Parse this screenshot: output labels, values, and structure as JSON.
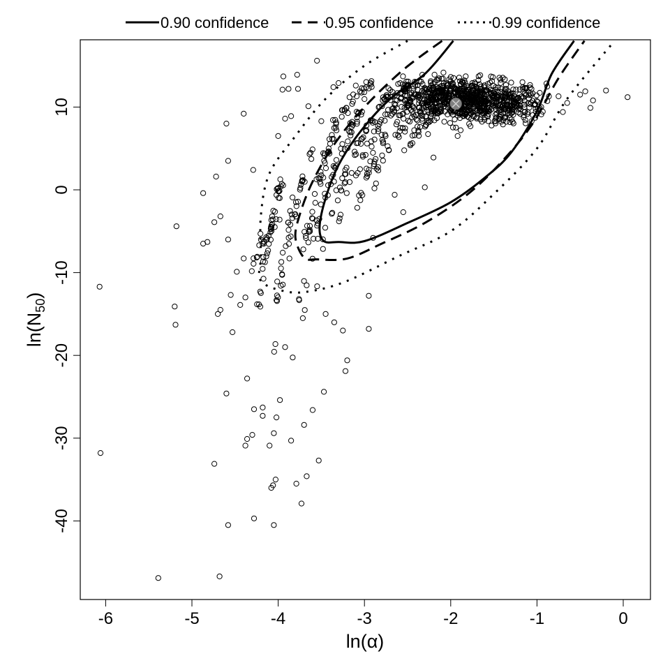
{
  "chart_data": {
    "type": "scatter",
    "title": "",
    "xlabel": "ln(α)",
    "ylabel": "ln(N50)",
    "ylabel_main": "ln(N",
    "ylabel_sub": "50",
    "ylabel_close": ")",
    "xlim": [
      -6.3,
      0.3
    ],
    "ylim": [
      -49,
      18
    ],
    "x_ticks": [
      -6,
      -5,
      -4,
      -3,
      -2,
      -1,
      0
    ],
    "x_tick_labels": [
      "-6",
      "-5",
      "-4",
      "-3",
      "-2",
      "-1",
      "0"
    ],
    "y_ticks": [
      10,
      0,
      -10,
      -20,
      -30,
      -40
    ],
    "y_tick_labels": [
      "10",
      "0",
      "-10",
      "-20",
      "-30",
      "-40"
    ],
    "grid": false,
    "legend_position": "top (outside plot)",
    "legend": [
      {
        "label": "0.90 confidence",
        "style": "solid"
      },
      {
        "label": "0.95 confidence",
        "style": "dashed"
      },
      {
        "label": "0.99 confidence",
        "style": "dotted"
      }
    ],
    "point_estimate": {
      "x": -1.94,
      "y": 10.4,
      "marker": "circled-x",
      "color": "#808080"
    },
    "contours": [
      {
        "name": "0.90 confidence",
        "style": "solid",
        "points": [
          [
            -1.97,
            18
          ],
          [
            -2.3,
            14
          ],
          [
            -2.7,
            11
          ],
          [
            -3.05,
            7
          ],
          [
            -3.3,
            3
          ],
          [
            -3.45,
            -1
          ],
          [
            -3.52,
            -4.5
          ],
          [
            -3.47,
            -6.2
          ],
          [
            -3.3,
            -6.3
          ],
          [
            -3.0,
            -6.2
          ],
          [
            -2.5,
            -4
          ],
          [
            -2.0,
            -1.5
          ],
          [
            -1.6,
            1.5
          ],
          [
            -1.3,
            4.5
          ],
          [
            -1.0,
            9.5
          ],
          [
            -0.83,
            14
          ],
          [
            -0.57,
            18
          ]
        ]
      },
      {
        "name": "0.95 confidence",
        "style": "dashed",
        "points": [
          [
            -2.1,
            18
          ],
          [
            -2.55,
            14.5
          ],
          [
            -3.0,
            10
          ],
          [
            -3.35,
            5.5
          ],
          [
            -3.6,
            1
          ],
          [
            -3.75,
            -3
          ],
          [
            -3.8,
            -5.8
          ],
          [
            -3.7,
            -8.2
          ],
          [
            -3.55,
            -8.4
          ],
          [
            -3.2,
            -8.3
          ],
          [
            -2.8,
            -6.5
          ],
          [
            -2.3,
            -4
          ],
          [
            -1.8,
            -0.5
          ],
          [
            -1.4,
            3.5
          ],
          [
            -1.05,
            8
          ],
          [
            -0.75,
            13.5
          ],
          [
            -0.45,
            18
          ]
        ]
      },
      {
        "name": "0.99 confidence",
        "style": "dotted",
        "points": [
          [
            -2.5,
            18
          ],
          [
            -3.0,
            15
          ],
          [
            -3.45,
            11
          ],
          [
            -3.8,
            6.5
          ],
          [
            -4.1,
            2
          ],
          [
            -4.2,
            -3
          ],
          [
            -4.2,
            -8
          ],
          [
            -4.2,
            -11
          ],
          [
            -3.9,
            -12.3
          ],
          [
            -3.6,
            -12.2
          ],
          [
            -3.2,
            -11
          ],
          [
            -2.6,
            -8
          ],
          [
            -2.0,
            -5
          ],
          [
            -1.5,
            -0.5
          ],
          [
            -1.0,
            5
          ],
          [
            -0.65,
            11
          ],
          [
            -0.1,
            18
          ]
        ]
      }
    ],
    "scatter_outliers": [
      [
        -6.07,
        -11.7
      ],
      [
        -6.06,
        -31.8
      ],
      [
        -5.39,
        -46.9
      ],
      [
        -4.68,
        -46.7
      ],
      [
        -5.18,
        -4.4
      ],
      [
        -5.2,
        -14.1
      ],
      [
        -5.19,
        -16.3
      ],
      [
        -4.87,
        -0.4
      ],
      [
        -4.82,
        -6.3
      ],
      [
        -4.87,
        -6.5
      ],
      [
        -4.74,
        -3.9
      ],
      [
        -4.72,
        1.6
      ],
      [
        -4.7,
        -15
      ],
      [
        -4.67,
        -3.2
      ],
      [
        -4.67,
        -14.5
      ],
      [
        -4.6,
        8
      ],
      [
        -4.58,
        3.5
      ],
      [
        -4.58,
        -6
      ],
      [
        -4.6,
        -24.6
      ],
      [
        -4.58,
        -40.5
      ],
      [
        -4.55,
        -12.7
      ],
      [
        -4.53,
        -17.2
      ],
      [
        -4.74,
        -33.1
      ],
      [
        -4.4,
        9.2
      ],
      [
        -4.29,
        2.4
      ],
      [
        -4.48,
        -9.9
      ],
      [
        -4.44,
        -13.9
      ],
      [
        -4.4,
        -8.3
      ],
      [
        -4.38,
        -13
      ],
      [
        -4.36,
        -30.1
      ],
      [
        -4.38,
        -30.9
      ],
      [
        -4.36,
        -22.8
      ],
      [
        -4.3,
        -29.6
      ],
      [
        -4.28,
        -26.5
      ],
      [
        -4.28,
        -39.7
      ],
      [
        -4.18,
        -26.3
      ],
      [
        -4.18,
        -27.3
      ],
      [
        -4.1,
        -30.9
      ],
      [
        -4.08,
        -36
      ],
      [
        -4.06,
        -35.7
      ],
      [
        -4.05,
        -29.4
      ],
      [
        -4.03,
        -35
      ],
      [
        -4.02,
        -27.5
      ],
      [
        -4.05,
        -40.5
      ],
      [
        -3.98,
        -25.4
      ],
      [
        -3.92,
        -19
      ],
      [
        -3.87,
        -8.3
      ],
      [
        -3.85,
        -30.3
      ],
      [
        -3.79,
        -35.5
      ],
      [
        -3.73,
        -37.9
      ],
      [
        -3.7,
        -28.4
      ],
      [
        -3.67,
        -34.6
      ],
      [
        -3.6,
        -26.6
      ],
      [
        -3.53,
        -32.7
      ],
      [
        -3.47,
        -24.4
      ],
      [
        -3.45,
        -15
      ],
      [
        -3.35,
        -16
      ],
      [
        -3.25,
        -17
      ],
      [
        -3.2,
        -20.6
      ],
      [
        -3.22,
        -21.9
      ],
      [
        -2.95,
        -16.8
      ],
      [
        -2.95,
        -12.8
      ],
      [
        -2.9,
        -5.8
      ],
      [
        -2.65,
        -0.6
      ],
      [
        -2.55,
        -2.7
      ],
      [
        -2.3,
        0.3
      ],
      [
        -2.2,
        3.9
      ],
      [
        -1.92,
        6.5
      ],
      [
        -1.1,
        10.5
      ],
      [
        -0.75,
        11.3
      ],
      [
        -0.7,
        9.4
      ],
      [
        -0.65,
        10.5
      ],
      [
        -0.5,
        11.5
      ],
      [
        -0.44,
        11.9
      ],
      [
        -0.38,
        9.9
      ],
      [
        -0.35,
        10.8
      ],
      [
        -0.2,
        12
      ],
      [
        0.05,
        11.2
      ],
      [
        -4.0,
        6.5
      ],
      [
        -3.92,
        8.6
      ],
      [
        -3.85,
        8.9
      ],
      [
        -3.95,
        12.1
      ],
      [
        -3.88,
        12.2
      ],
      [
        -3.77,
        12.2
      ],
      [
        -3.94,
        13.7
      ],
      [
        -3.78,
        13.9
      ],
      [
        -3.55,
        15.6
      ],
      [
        -3.65,
        10.1
      ],
      [
        -3.5,
        8.3
      ],
      [
        -3.36,
        12.4
      ],
      [
        -3.3,
        12.9
      ],
      [
        -3.1,
        12.6
      ]
    ],
    "scatter_bands_note": "Dense streaks of points along diagonal bands between ln(α)=-4.3 and -2.5; dense core cluster around ln(α)∈[-2.6,-0.9], ln(N50)∈[7,14]",
    "scatter_bands": [
      {
        "x0": -4.25,
        "y0": -20,
        "x1": -3.95,
        "y1": 1,
        "n": 40
      },
      {
        "x0": -4.05,
        "y0": -22,
        "x1": -3.6,
        "y1": 5,
        "n": 45
      },
      {
        "x0": -3.85,
        "y0": -25,
        "x1": -3.3,
        "y1": 9,
        "n": 50
      },
      {
        "x0": -3.7,
        "y0": -19,
        "x1": -3.0,
        "y1": 11,
        "n": 50
      },
      {
        "x0": -3.55,
        "y0": -15,
        "x1": -2.7,
        "y1": 12,
        "n": 50
      },
      {
        "x0": -3.35,
        "y0": -10,
        "x1": -2.5,
        "y1": 12.5,
        "n": 50
      },
      {
        "x0": -3.1,
        "y0": -5,
        "x1": -2.3,
        "y1": 12.5,
        "n": 45
      },
      {
        "x0": -2.9,
        "y0": -1.5,
        "x1": -2.1,
        "y1": 12,
        "n": 40
      },
      {
        "x0": -2.6,
        "y0": 1,
        "x1": -1.9,
        "y1": 11.5,
        "n": 35
      },
      {
        "x0": -4.3,
        "y0": -11,
        "x1": -3.95,
        "y1": -3,
        "n": 20
      },
      {
        "x0": -3.4,
        "y0": 5,
        "x1": -2.9,
        "y1": 13,
        "n": 25
      }
    ],
    "scatter_core": {
      "cx": -1.8,
      "cy": 10.8,
      "sx": 0.45,
      "sy": 1.6,
      "n": 900,
      "xmin": -2.7,
      "xmax": -0.85,
      "ymin": 6,
      "ymax": 14.5
    }
  }
}
